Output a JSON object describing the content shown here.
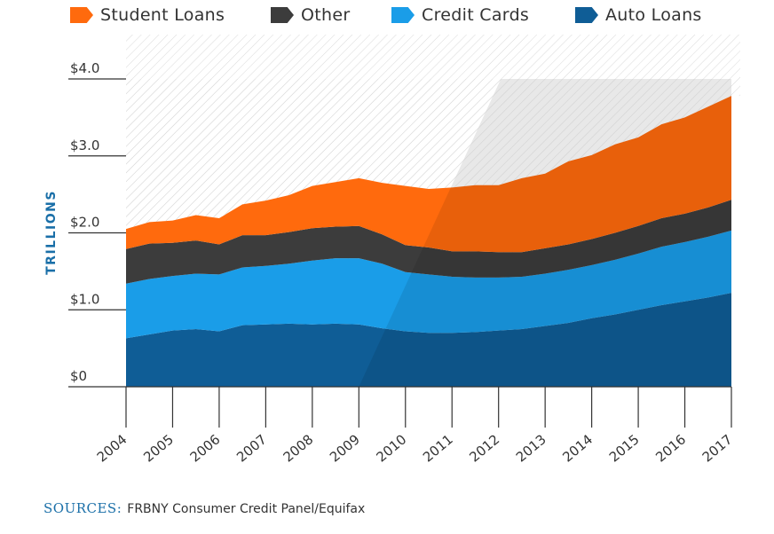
{
  "chart_data": {
    "type": "area",
    "stacked": true,
    "ylabel": "TRILLIONS",
    "ylim": [
      0,
      4.0
    ],
    "yticks": [
      {
        "value": 0,
        "label": "$0"
      },
      {
        "value": 1.0,
        "label": "$1.0"
      },
      {
        "value": 2.0,
        "label": "$2.0"
      },
      {
        "value": 3.0,
        "label": "$3.0"
      },
      {
        "value": 4.0,
        "label": "$4.0"
      }
    ],
    "xlim": [
      2004,
      2017
    ],
    "xticks": [
      "2004",
      "2005",
      "2006",
      "2007",
      "2008",
      "2009",
      "2010",
      "2011",
      "2012",
      "2013",
      "2014",
      "2015",
      "2016",
      "2017"
    ],
    "x": [
      2004,
      2004.5,
      2005,
      2005.5,
      2006,
      2006.5,
      2007,
      2007.5,
      2008,
      2008.5,
      2009,
      2009.5,
      2010,
      2010.5,
      2011,
      2011.5,
      2012,
      2012.5,
      2013,
      2013.5,
      2014,
      2014.5,
      2015,
      2015.5,
      2016,
      2016.5,
      2017
    ],
    "series": [
      {
        "name": "Auto Loans",
        "color": "#0f5d96",
        "values": [
          0.63,
          0.68,
          0.73,
          0.75,
          0.72,
          0.8,
          0.81,
          0.82,
          0.81,
          0.82,
          0.81,
          0.76,
          0.72,
          0.7,
          0.7,
          0.71,
          0.73,
          0.75,
          0.79,
          0.83,
          0.89,
          0.94,
          1.0,
          1.06,
          1.11,
          1.16,
          1.22
        ]
      },
      {
        "name": "Credit Cards",
        "color": "#1a9de8",
        "values": [
          0.71,
          0.72,
          0.71,
          0.72,
          0.74,
          0.75,
          0.76,
          0.78,
          0.83,
          0.85,
          0.86,
          0.84,
          0.77,
          0.76,
          0.73,
          0.71,
          0.69,
          0.68,
          0.68,
          0.69,
          0.69,
          0.71,
          0.73,
          0.76,
          0.77,
          0.79,
          0.81
        ]
      },
      {
        "name": "Other",
        "color": "#3c3c3c",
        "values": [
          0.45,
          0.46,
          0.43,
          0.43,
          0.39,
          0.42,
          0.4,
          0.41,
          0.42,
          0.41,
          0.42,
          0.38,
          0.35,
          0.35,
          0.33,
          0.34,
          0.33,
          0.32,
          0.33,
          0.33,
          0.34,
          0.35,
          0.36,
          0.37,
          0.37,
          0.38,
          0.4
        ]
      },
      {
        "name": "Student Loans",
        "color": "#ff6a0d",
        "values": [
          0.26,
          0.28,
          0.29,
          0.33,
          0.34,
          0.4,
          0.45,
          0.48,
          0.55,
          0.58,
          0.62,
          0.67,
          0.77,
          0.76,
          0.83,
          0.86,
          0.87,
          0.96,
          0.97,
          1.08,
          1.09,
          1.15,
          1.15,
          1.22,
          1.25,
          1.31,
          1.35
        ]
      }
    ]
  },
  "legend": [
    {
      "name": "Student Loans",
      "color": "#ff6a0d"
    },
    {
      "name": "Other",
      "color": "#3c3c3c"
    },
    {
      "name": "Credit Cards",
      "color": "#1a9de8"
    },
    {
      "name": "Auto Loans",
      "color": "#0f5d96"
    }
  ],
  "sources": {
    "label": "SOURCES:",
    "text": "FRBNY Consumer Credit Panel/Equifax"
  }
}
